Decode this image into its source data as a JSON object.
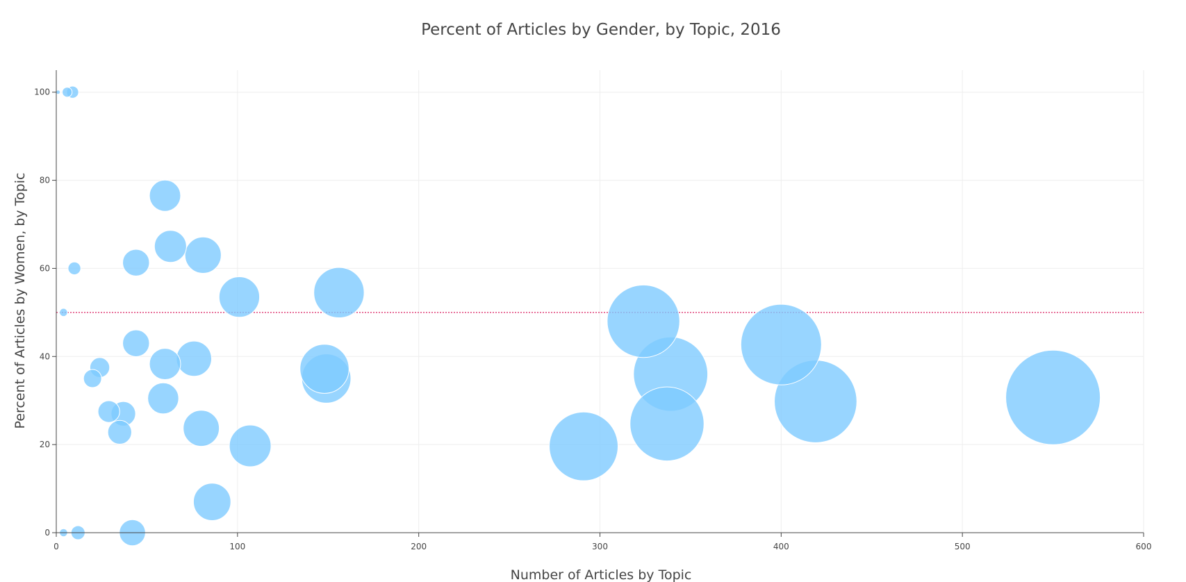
{
  "chart_data": {
    "type": "scatter",
    "title": "Percent of Articles by Gender, by Topic, 2016",
    "xlabel": "Number of Articles by Topic",
    "ylabel": "Percent of Articles by Women, by Topic",
    "xlim": [
      0,
      600
    ],
    "ylim": [
      0,
      105
    ],
    "x_ticks": [
      "0",
      "100",
      "200",
      "300",
      "400",
      "500",
      "600"
    ],
    "y_ticks": [
      "0",
      "20",
      "40",
      "60",
      "80",
      "100"
    ],
    "grid": true,
    "reference_line": {
      "y": 50,
      "color": "#e0457b"
    },
    "bubble_color": "#7ecbff",
    "points": [
      {
        "x": 1,
        "y": 100
      },
      {
        "x": 6,
        "y": 100
      },
      {
        "x": 9,
        "y": 100
      },
      {
        "x": 60,
        "y": 76.5
      },
      {
        "x": 63,
        "y": 65
      },
      {
        "x": 81,
        "y": 63
      },
      {
        "x": 44,
        "y": 61.3
      },
      {
        "x": 10,
        "y": 60
      },
      {
        "x": 156,
        "y": 54.5
      },
      {
        "x": 101,
        "y": 53.5
      },
      {
        "x": 4,
        "y": 50
      },
      {
        "x": 324,
        "y": 48
      },
      {
        "x": 400,
        "y": 42.7
      },
      {
        "x": 44,
        "y": 43
      },
      {
        "x": 76,
        "y": 39.5
      },
      {
        "x": 60,
        "y": 38.3
      },
      {
        "x": 24,
        "y": 37.5
      },
      {
        "x": 148,
        "y": 37.2
      },
      {
        "x": 339,
        "y": 36
      },
      {
        "x": 149,
        "y": 35
      },
      {
        "x": 20,
        "y": 35
      },
      {
        "x": 550,
        "y": 30.7
      },
      {
        "x": 59,
        "y": 30.5
      },
      {
        "x": 419,
        "y": 29.8
      },
      {
        "x": 29,
        "y": 27.5
      },
      {
        "x": 37,
        "y": 27
      },
      {
        "x": 337,
        "y": 24.7
      },
      {
        "x": 80,
        "y": 23.7
      },
      {
        "x": 35,
        "y": 22.8
      },
      {
        "x": 107,
        "y": 19.7
      },
      {
        "x": 291,
        "y": 19.6
      },
      {
        "x": 86,
        "y": 7
      },
      {
        "x": 4,
        "y": 0
      },
      {
        "x": 12,
        "y": 0
      },
      {
        "x": 42,
        "y": 0
      }
    ]
  }
}
